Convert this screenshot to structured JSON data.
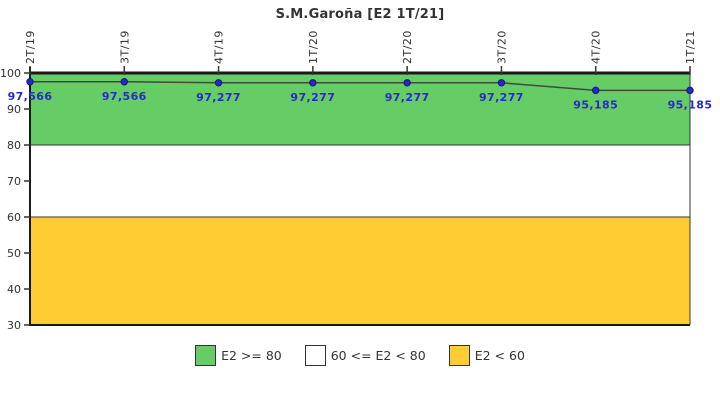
{
  "title": "S.M.Garoña [E2 1T/21]",
  "colors": {
    "band_high": "#66CC66",
    "band_mid": "#FFFFFF",
    "band_low": "#FFCC33",
    "line": "#3d4a3d",
    "point": "#2626C9",
    "point_stroke": "#15157a",
    "point_label": "#2929CC",
    "axis": "#333333",
    "border_heavy": "#1a1a1a"
  },
  "chart_data": {
    "type": "line",
    "title": "S.M.Garoña [E2 1T/21]",
    "categories": [
      "2T/19",
      "3T/19",
      "4T/19",
      "1T/20",
      "2T/20",
      "3T/20",
      "4T/20",
      "1T/21"
    ],
    "values": [
      97.566,
      97.566,
      97.277,
      97.277,
      97.277,
      97.277,
      95.185,
      95.185
    ],
    "value_labels": [
      "97,566",
      "97,566",
      "97,277",
      "97,277",
      "97,277",
      "97,277",
      "95,185",
      "95,185"
    ],
    "ylim": [
      30,
      100
    ],
    "yticks": [
      100,
      90,
      80,
      70,
      60,
      50,
      40,
      30
    ],
    "xlabel": "",
    "ylabel": "",
    "grid": "band boundaries only",
    "legend_position": "bottom",
    "bands": [
      {
        "from": 80,
        "to": 100,
        "color": "#66CC66",
        "label": "E2 >= 80"
      },
      {
        "from": 60,
        "to": 80,
        "color": "#FFFFFF",
        "label": "60 <= E2 < 80"
      },
      {
        "from": 30,
        "to": 60,
        "color": "#FFCC33",
        "label": "E2 < 60"
      }
    ]
  },
  "legend": {
    "items": [
      {
        "label": "E2 >= 80",
        "color": "#66CC66"
      },
      {
        "label": "60 <= E2 < 80",
        "color": "#FFFFFF"
      },
      {
        "label": "E2 < 60",
        "color": "#FFCC33"
      }
    ]
  }
}
